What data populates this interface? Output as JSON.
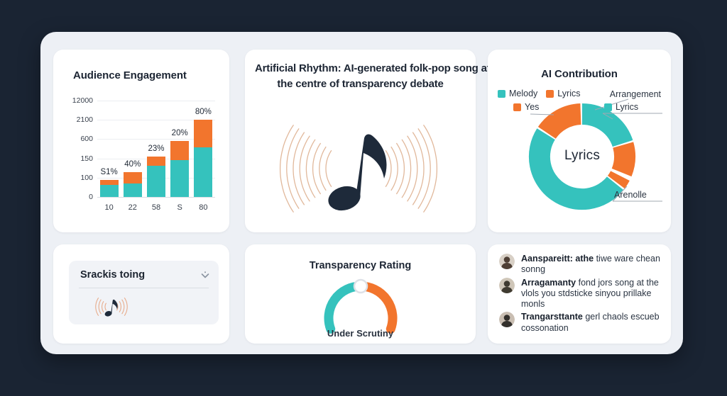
{
  "colors": {
    "background": "#1a2433",
    "panel": "#edf0f5",
    "card": "#ffffff",
    "teal": "#35c2bd",
    "orange": "#f2752d",
    "wave": "#dcab89",
    "wave_small": "#e7a480",
    "note": "#1e2a3a",
    "text_dark": "#1c2533"
  },
  "cards": {
    "engagement": {
      "title": "Audience Engagement"
    },
    "headline": {
      "title": "Artificial Rhythm: AI-generated folk-pop song at the centre of transparency debate",
      "title_line1": "Artificial Rhythm: AI-generated folk-pop song at",
      "title_line2": "the centre of transparency debate"
    },
    "contribution": {
      "title": "AI Contribution",
      "legend": [
        {
          "label": "Melody",
          "color": "#35c2bd"
        },
        {
          "label": "Lyrics",
          "color": "#f2752d"
        }
      ],
      "callouts": {
        "arrangement": "Arrangement",
        "yes": "Yes",
        "lyrics": "Lyrics",
        "arenolle": "Arenolle"
      },
      "center_label": "Lyrics"
    },
    "selector": {
      "label": "Srackis toing"
    },
    "gauge": {
      "title": "Transparency Rating",
      "status": "Under Scrutiny"
    },
    "comments": {
      "items": [
        {
          "bold": "Aanspareitt: athe",
          "rest": " tiwe ware chean sonng"
        },
        {
          "bold": "Arragamanty",
          "rest": " fond jors song at the vlols you stdsticke sinyou prillake monls"
        },
        {
          "bold": "Trangarsttante",
          "rest": " gerl chaols escueb cossonation"
        }
      ]
    }
  },
  "chart_data": [
    {
      "type": "bar",
      "stacked": true,
      "title": "Audience Engagement",
      "categories": [
        "10",
        "22",
        "58",
        "S",
        "80"
      ],
      "series": [
        {
          "name": "teal",
          "color": "#35c2bd",
          "values": [
            17,
            19,
            44,
            52,
            70
          ]
        },
        {
          "name": "orange",
          "color": "#f2752d",
          "values": [
            7,
            16,
            13,
            27,
            39
          ]
        }
      ],
      "bar_labels": [
        "S1%",
        "40%",
        "23%",
        "20%",
        "80%"
      ],
      "yticks": [
        "12000",
        "2100",
        "600",
        "150",
        "100",
        "0"
      ],
      "grid": true,
      "legend_position": "none"
    },
    {
      "type": "pie",
      "donut": true,
      "title": "AI Contribution",
      "center_label": "Lyrics",
      "segments": [
        {
          "color": "#35c2bd",
          "start": 0,
          "end": 72,
          "pct": 20
        },
        {
          "color": "#f2752d",
          "start": 74,
          "end": 112,
          "pct": 10.5
        },
        {
          "color": "#f2752d",
          "start": 117,
          "end": 127,
          "pct": 3
        },
        {
          "color": "#35c2bd",
          "start": 129,
          "end": 302,
          "pct": 48
        },
        {
          "color": "#f2752d",
          "start": 304,
          "end": 358,
          "pct": 15
        }
      ],
      "legend": [
        "Melody",
        "Lyrics"
      ],
      "annotations": [
        "Arrangement",
        "Yes",
        "Lyrics",
        "Arenolle"
      ]
    },
    {
      "type": "gauge",
      "title": "Transparency Rating",
      "status": "Under Scrutiny",
      "segments": [
        {
          "color": "#35c2bd",
          "pct": 50
        },
        {
          "color": "#f2752d",
          "pct": 50
        }
      ]
    }
  ]
}
